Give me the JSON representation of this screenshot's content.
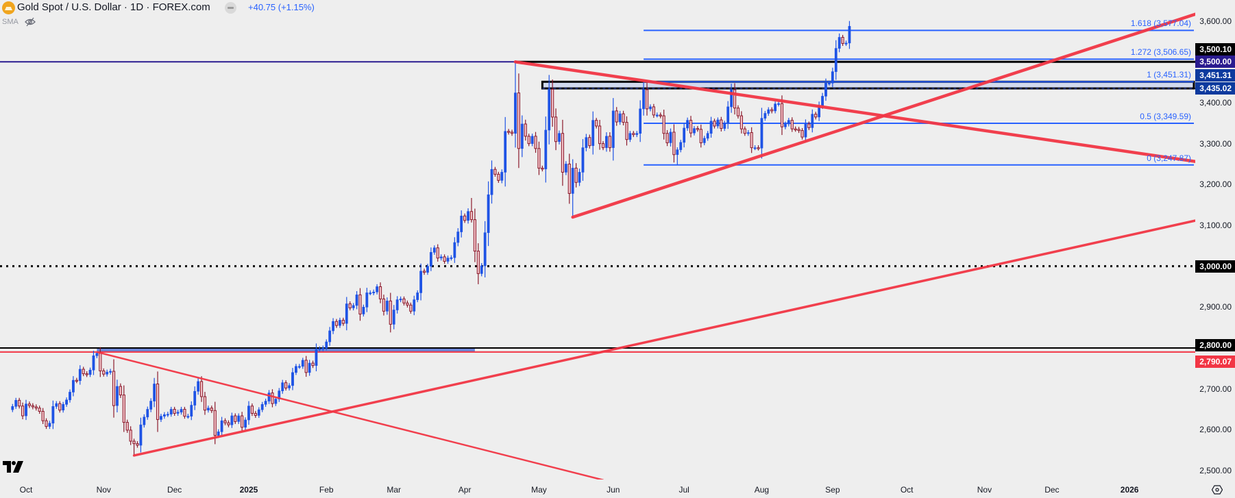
{
  "header": {
    "title": "Gold Spot / U.S. Dollar · 1D · FOREX.com",
    "change": "+40.75 (+1.15%)",
    "indicator": "SMA",
    "symbol_icon": "gold-bar-icon",
    "hide_icon": "eye-off-icon"
  },
  "colors": {
    "background": "#eeeeee",
    "up_candle": "#1e53e5",
    "down_candle_border": "#8b1a2b",
    "down_candle_fill": "#f3c3c9",
    "trendline": "#f23645",
    "fib": "#2962ff",
    "level_3500": "#2a1b8f",
    "zone_fill": "#d1d9ee",
    "band_fill": "#6b86d6"
  },
  "chart_data": {
    "type": "candlestick",
    "title": "Gold Spot / U.S. Dollar · 1D · FOREX.com",
    "start_date": "2024-09-25",
    "closes": [
      2657,
      2672,
      2658,
      2634,
      2663,
      2659,
      2656,
      2653,
      2645,
      2622,
      2608,
      2616,
      2657,
      2664,
      2648,
      2662,
      2673,
      2692,
      2721,
      2720,
      2748,
      2737,
      2735,
      2746,
      2781,
      2787,
      2744,
      2736,
      2741,
      2743,
      2659,
      2706,
      2685,
      2618,
      2599,
      2572,
      2566,
      2562,
      2612,
      2631,
      2650,
      2670,
      2712,
      2625,
      2633,
      2637,
      2638,
      2650,
      2640,
      2643,
      2650,
      2633,
      2633,
      2660,
      2694,
      2718,
      2681,
      2648,
      2653,
      2647,
      2586,
      2595,
      2622,
      2617,
      2612,
      2634,
      2620,
      2634,
      2606,
      2624,
      2658,
      2640,
      2635,
      2649,
      2662,
      2670,
      2690,
      2664,
      2675,
      2695,
      2715,
      2702,
      2708,
      2740,
      2755,
      2755,
      2770,
      2740,
      2763,
      2757,
      2797,
      2798,
      2800,
      2815,
      2842,
      2865,
      2855,
      2868,
      2860,
      2908,
      2898,
      2904,
      2930,
      2883,
      2900,
      2935,
      2935,
      2937,
      2950,
      2920,
      2890,
      2915,
      2858,
      2893,
      2918,
      2920,
      2910,
      2905,
      2890,
      2918,
      2935,
      2988,
      2985,
      3000,
      3034,
      3045,
      3020,
      3023,
      3012,
      3020,
      3021,
      3058,
      3084,
      3123,
      3112,
      3134,
      3114,
      3037,
      2982,
      3001,
      3082,
      3175,
      3237,
      3225,
      3210,
      3230,
      3330,
      3328,
      3325,
      3424,
      3288,
      3348,
      3318,
      3300,
      3318,
      3288,
      3240,
      3238,
      3333,
      3433,
      3365,
      3305,
      3325,
      3230,
      3250,
      3178,
      3240,
      3205,
      3230,
      3290,
      3315,
      3295,
      3357,
      3343,
      3300,
      3290,
      3318,
      3290,
      3380,
      3353,
      3373,
      3352,
      3310,
      3325,
      3322,
      3325,
      3385,
      3432,
      3385,
      3390,
      3370,
      3370,
      3368,
      3325,
      3302,
      3328,
      3273,
      3285,
      3303,
      3338,
      3357,
      3326,
      3337,
      3335,
      3302,
      3313,
      3325,
      3355,
      3343,
      3358,
      3337,
      3350,
      3390,
      3432,
      3387,
      3368,
      3336,
      3325,
      3327,
      3290,
      3290,
      3289,
      3362,
      3374,
      3383,
      3380,
      3397,
      3398,
      3341,
      3348,
      3357,
      3336,
      3335,
      3332,
      3316,
      3348,
      3339,
      3372,
      3365,
      3393,
      3416,
      3448,
      3448,
      3476,
      3533,
      3560,
      3545,
      3546,
      3587
    ],
    "high_overrides": {
      "2024-10-30": 2790.07,
      "2025-04-22": 3500.1,
      "2025-06-13": 3451.31,
      "2025-09-08": 3600,
      "2025-04-03": 3167
    },
    "low_overrides": {
      "2024-11-14": 2537,
      "2025-05-15": 3120,
      "2025-06-27": 3247.87,
      "2025-04-07": 2956
    },
    "y_axis": {
      "min": 2480,
      "max": 3640,
      "ticks": [
        "3,600.00",
        "3,400.00",
        "3,300.00",
        "3,200.00",
        "3,100.00",
        "2,900.00",
        "2,700.00",
        "2,600.00",
        "2,500.00"
      ],
      "tick_values": [
        3600,
        3400,
        3300,
        3200,
        3100,
        2900,
        2700,
        2600,
        2500
      ]
    },
    "x_axis": {
      "ticks": [
        {
          "label": "Oct",
          "date": "2024-10-01"
        },
        {
          "label": "Nov",
          "date": "2024-11-01"
        },
        {
          "label": "Dec",
          "date": "2024-12-02"
        },
        {
          "label": "2025",
          "date": "2025-01-01",
          "year": true
        },
        {
          "label": "Feb",
          "date": "2025-02-03"
        },
        {
          "label": "Mar",
          "date": "2025-03-03"
        },
        {
          "label": "Apr",
          "date": "2025-04-01"
        },
        {
          "label": "May",
          "date": "2025-05-01"
        },
        {
          "label": "Jun",
          "date": "2025-06-02"
        },
        {
          "label": "Jul",
          "date": "2025-07-01"
        },
        {
          "label": "Aug",
          "date": "2025-08-01"
        },
        {
          "label": "Sep",
          "date": "2025-09-01"
        },
        {
          "label": "Oct",
          "date": "2025-10-01"
        },
        {
          "label": "Nov",
          "date": "2025-11-03"
        },
        {
          "label": "Dec",
          "date": "2025-12-01"
        },
        {
          "label": "2026",
          "date": "2026-01-01",
          "year": true
        }
      ]
    },
    "price_tags": [
      {
        "label": "3,500.10",
        "price": 3500.1,
        "bg": "#000000"
      },
      {
        "label": "3,500.00",
        "price": 3500.0,
        "bg": "#2a1b8f"
      },
      {
        "label": "3,451.31",
        "price": 3451.31,
        "bg": "#0d3a9e"
      },
      {
        "label": "3,435.02",
        "price": 3435.02,
        "bg": "#0d3a9e"
      },
      {
        "label": "3,000.00",
        "price": 3000.0,
        "bg": "#000000"
      },
      {
        "label": "2,800.00",
        "price": 2800.0,
        "bg": "#000000"
      },
      {
        "label": "2,790.07",
        "price": 2790.07,
        "bg": "#f23645"
      }
    ],
    "horizontal_levels": [
      {
        "price": 3500.0,
        "color": "#2a1b8f",
        "style": "solid",
        "from": null
      },
      {
        "price": 3500.1,
        "color": "#000000",
        "style": "solid",
        "from": "2025-04-22"
      },
      {
        "price": 3000.0,
        "color": "#000000",
        "style": "dotted",
        "from": null
      },
      {
        "price": 2800.0,
        "color": "#000000",
        "style": "solid",
        "from": null
      },
      {
        "price": 2790.07,
        "color": "#f23645",
        "style": "solid",
        "from": null
      }
    ],
    "zone": {
      "top": 3451.31,
      "bottom": 3435.02,
      "from": "2025-05-02"
    },
    "band": {
      "top": 2800,
      "bottom": 2790.07,
      "from": "2024-10-30",
      "to": "2025-04-04"
    },
    "fibonacci": {
      "from": "2025-06-13",
      "levels": [
        {
          "label": "1.618 (3,577.04)",
          "price": 3577.04
        },
        {
          "label": "1.272 (3,506.65)",
          "price": 3506.65
        },
        {
          "label": "1 (3,451.31)",
          "price": 3451.31
        },
        {
          "label": "0.5 (3,349.59)",
          "price": 3349.59
        },
        {
          "label": "0 (3,247.87)",
          "price": 3247.87
        }
      ]
    },
    "trendlines": [
      {
        "from": [
          "2025-04-22",
          3500
        ],
        "to": [
          "2026-02-03",
          3252
        ],
        "weight": "thick"
      },
      {
        "from": [
          "2025-05-15",
          3120
        ],
        "to": [
          "2026-02-03",
          3626
        ],
        "weight": "thick"
      },
      {
        "from": [
          "2024-11-14",
          2537
        ],
        "to": [
          "2026-02-03",
          3118
        ],
        "weight": "medium"
      },
      {
        "from": [
          "2024-10-30",
          2790
        ],
        "to": [
          "2025-05-28",
          2477
        ],
        "weight": "thin"
      }
    ]
  }
}
